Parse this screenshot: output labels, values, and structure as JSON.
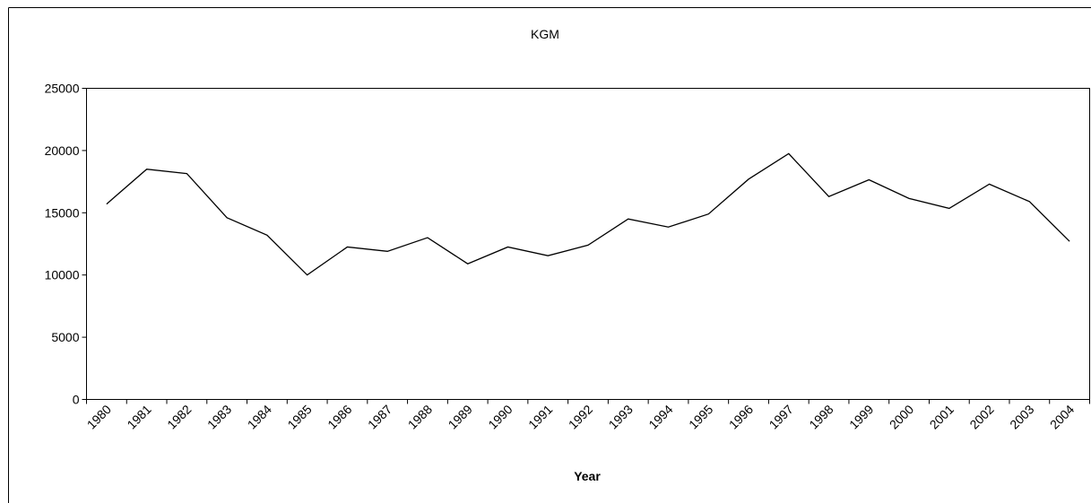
{
  "chart_data": {
    "type": "line",
    "title": "KGM",
    "x_label": "Year",
    "categories": [
      "1980",
      "1981",
      "1982",
      "1983",
      "1984",
      "1985",
      "1986",
      "1987",
      "1988",
      "1989",
      "1990",
      "1991",
      "1992",
      "1993",
      "1994",
      "1995",
      "1996",
      "1997",
      "1998",
      "1999",
      "2000",
      "2001",
      "2002",
      "2003",
      "2004"
    ],
    "values": [
      15700,
      18500,
      18150,
      14600,
      13200,
      10000,
      12250,
      11900,
      13000,
      10900,
      12250,
      11550,
      12400,
      14500,
      13850,
      14900,
      17700,
      19750,
      16300,
      17650,
      16150,
      15350,
      17300,
      15900,
      12700
    ],
    "color": "#000000",
    "ylim": [
      0,
      25000
    ],
    "yticks": [
      0,
      5000,
      10000,
      15000,
      20000,
      25000
    ],
    "grid": false
  }
}
